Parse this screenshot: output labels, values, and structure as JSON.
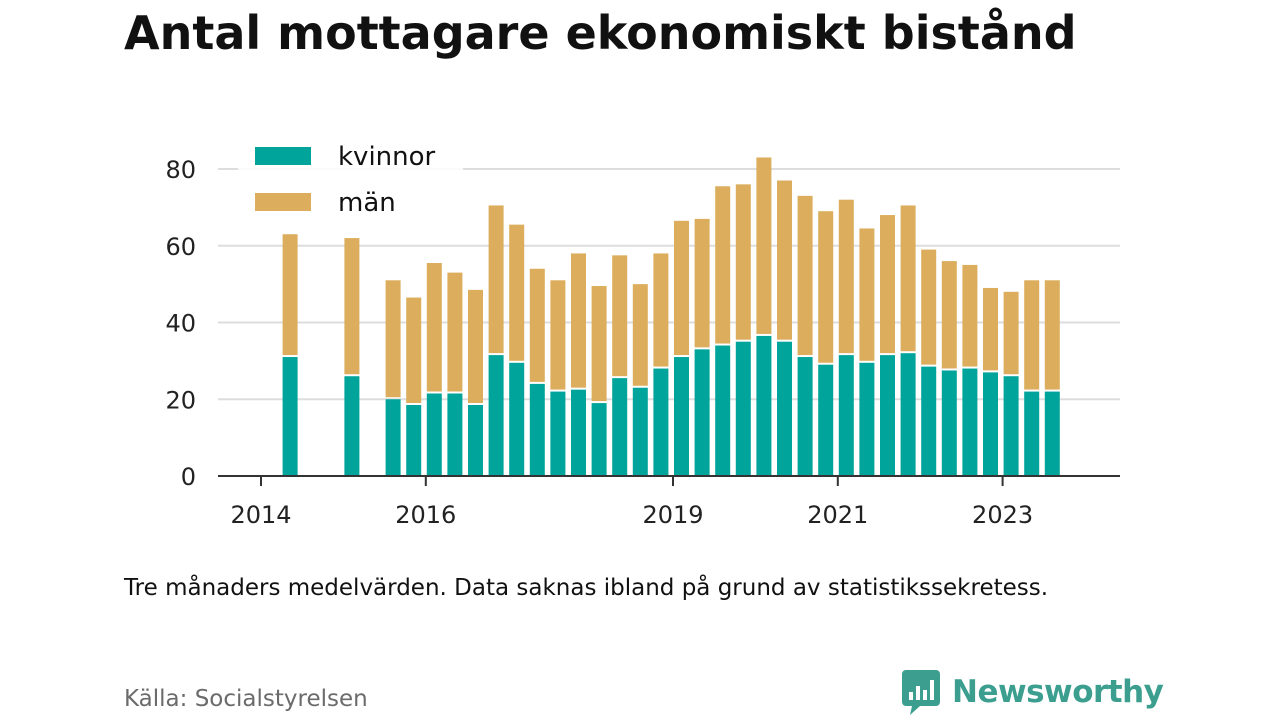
{
  "title": "Antal mottagare ekonomiskt bistånd",
  "note": "Tre månaders medelvärden. Data saknas ibland på grund av statistikssekretess.",
  "source": "Källa: Socialstyrelsen",
  "brand": {
    "name": "Newsworthy",
    "icon": "newsworthy-logo-icon",
    "color": "#3b9e8e"
  },
  "colors": {
    "kvinnor": "#00a49a",
    "man": "#dbad5c",
    "grid": "#dddddd",
    "axis": "#333333"
  },
  "chart_data": {
    "type": "bar",
    "stacked": true,
    "x_unit": "quarter",
    "x": [
      "2014-Q4",
      "2015-Q3",
      "2016-Q1",
      "2016-Q2",
      "2016-Q3",
      "2016-Q4",
      "2017-Q1",
      "2017-Q2",
      "2017-Q3",
      "2017-Q4",
      "2018-Q1",
      "2018-Q2",
      "2018-Q3",
      "2018-Q4",
      "2019-Q1",
      "2019-Q2",
      "2019-Q3",
      "2019-Q4",
      "2020-Q1",
      "2020-Q2",
      "2020-Q3",
      "2020-Q4",
      "2021-Q1",
      "2021-Q2",
      "2021-Q3",
      "2021-Q4",
      "2022-Q1",
      "2022-Q2",
      "2022-Q3",
      "2022-Q4",
      "2023-Q1",
      "2023-Q2",
      "2023-Q3",
      "2023-Q4",
      "2024-Q1"
    ],
    "series": [
      {
        "name": "kvinnor",
        "values": [
          31,
          26,
          20,
          18.5,
          21.5,
          21.5,
          18.5,
          31.5,
          29.5,
          24,
          22,
          22.5,
          19,
          25.5,
          23,
          28,
          31,
          33,
          34,
          35,
          36.5,
          35,
          31,
          29,
          31.5,
          29.5,
          31.5,
          32,
          28.5,
          27.5,
          28,
          27,
          26,
          22,
          22
        ]
      },
      {
        "name": "män",
        "values": [
          32,
          36,
          31,
          28,
          34,
          31.5,
          30,
          39,
          36,
          30,
          29,
          35.5,
          30.5,
          32,
          27,
          30,
          35.5,
          34,
          41.5,
          41,
          46.5,
          42,
          42,
          40,
          40.5,
          35,
          36.5,
          38.5,
          30.5,
          28.5,
          27,
          22,
          22,
          29,
          29
        ]
      }
    ],
    "ylim": [
      0,
      85
    ],
    "yticks": [
      0,
      20,
      40,
      60,
      80
    ],
    "xticks": [
      "2014",
      "2016",
      "2019",
      "2021",
      "2023"
    ],
    "legend": {
      "position": "top-left",
      "entries": [
        "kvinnor",
        "män"
      ]
    },
    "grid": "horizontal"
  }
}
